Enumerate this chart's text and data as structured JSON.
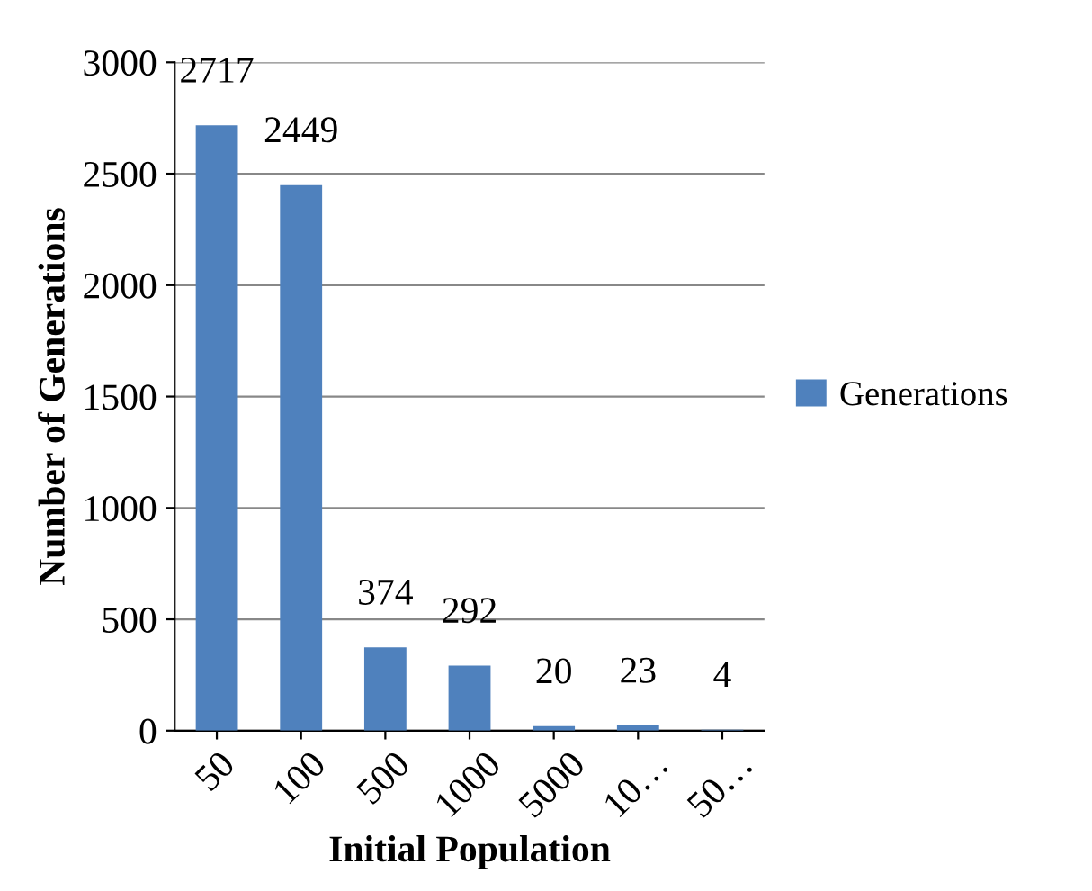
{
  "chart_data": {
    "type": "bar",
    "xlabel": "Initial Population",
    "ylabel": "Number of Generations",
    "categories": [
      "50",
      "100",
      "500",
      "1000",
      "5000",
      "10…",
      "50…"
    ],
    "series": [
      {
        "name": "Generations",
        "color": "#4f81bd",
        "values": [
          2717,
          2449,
          374,
          292,
          20,
          23,
          4
        ]
      }
    ],
    "data_labels": true,
    "ylim": [
      0,
      3000
    ],
    "yticks": [
      0,
      500,
      1000,
      1500,
      2000,
      2500,
      3000
    ],
    "grid": "y",
    "legend": "right"
  }
}
